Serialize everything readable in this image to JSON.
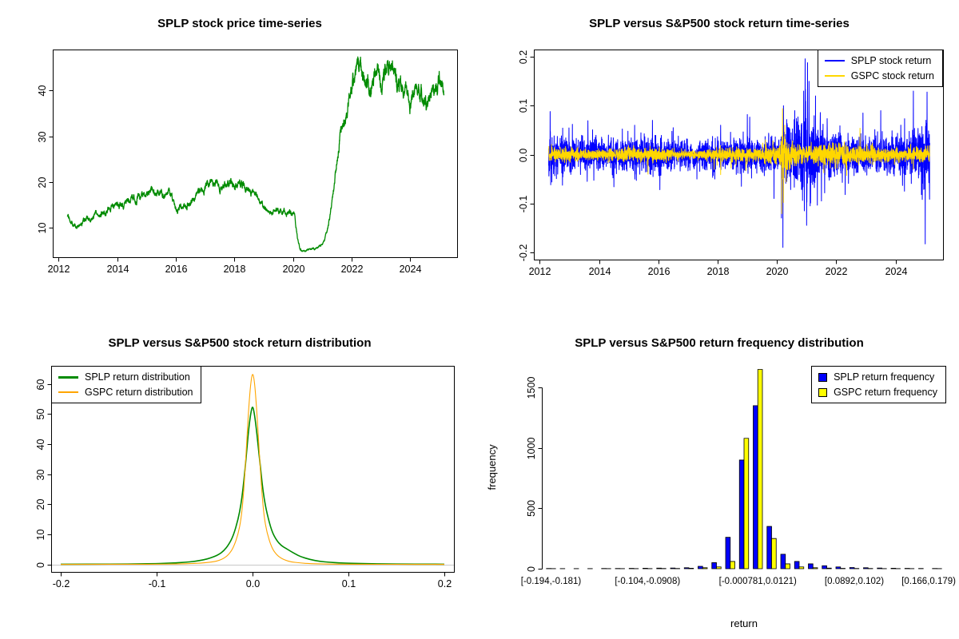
{
  "chart_data": [
    {
      "id": "price-series",
      "type": "line",
      "title": "SPLP stock price time-series",
      "series_name": "SPLP stock price",
      "color": "#008B00",
      "xlim": [
        2011.8,
        2025.6
      ],
      "ylim": [
        3.5,
        49
      ],
      "x_range": [
        2012.3,
        2025.15
      ],
      "x_ticks": [
        2012,
        2014,
        2016,
        2018,
        2020,
        2022,
        2024
      ],
      "y_ticks": [
        10,
        20,
        30,
        40
      ],
      "anchors": [
        [
          2012.3,
          12.6
        ],
        [
          2012.45,
          11.0
        ],
        [
          2012.6,
          10.3
        ],
        [
          2012.8,
          11.2
        ],
        [
          2013.0,
          11.8
        ],
        [
          2013.2,
          12.5
        ],
        [
          2013.5,
          13.6
        ],
        [
          2013.8,
          14.5
        ],
        [
          2014.0,
          15.2
        ],
        [
          2014.2,
          15.0
        ],
        [
          2014.5,
          15.8
        ],
        [
          2014.8,
          16.5
        ],
        [
          2015.0,
          17.3
        ],
        [
          2015.2,
          18.3
        ],
        [
          2015.4,
          18.0
        ],
        [
          2015.6,
          17.2
        ],
        [
          2015.8,
          17.8
        ],
        [
          2015.95,
          16.0
        ],
        [
          2016.05,
          13.8
        ],
        [
          2016.2,
          14.6
        ],
        [
          2016.4,
          15.4
        ],
        [
          2016.6,
          16.3
        ],
        [
          2016.8,
          17.8
        ],
        [
          2017.0,
          18.8
        ],
        [
          2017.2,
          19.6
        ],
        [
          2017.4,
          19.2
        ],
        [
          2017.6,
          18.8
        ],
        [
          2017.8,
          19.3
        ],
        [
          2018.0,
          19.8
        ],
        [
          2018.15,
          20.4
        ],
        [
          2018.3,
          19.2
        ],
        [
          2018.5,
          17.8
        ],
        [
          2018.7,
          16.8
        ],
        [
          2018.9,
          15.6
        ],
        [
          2019.1,
          14.2
        ],
        [
          2019.3,
          13.8
        ],
        [
          2019.5,
          14.0
        ],
        [
          2019.7,
          13.6
        ],
        [
          2019.9,
          13.4
        ],
        [
          2020.05,
          13.0
        ],
        [
          2020.15,
          8.0
        ],
        [
          2020.25,
          5.2
        ],
        [
          2020.4,
          4.9
        ],
        [
          2020.6,
          5.3
        ],
        [
          2020.8,
          5.6
        ],
        [
          2021.0,
          6.2
        ],
        [
          2021.1,
          7.5
        ],
        [
          2021.2,
          10.5
        ],
        [
          2021.3,
          14.0
        ],
        [
          2021.4,
          19.0
        ],
        [
          2021.5,
          25.0
        ],
        [
          2021.6,
          30.0
        ],
        [
          2021.7,
          34.5
        ],
        [
          2021.8,
          33.0
        ],
        [
          2021.9,
          36.0
        ],
        [
          2022.0,
          41.0
        ],
        [
          2022.1,
          43.5
        ],
        [
          2022.25,
          44.5
        ],
        [
          2022.4,
          42.5
        ],
        [
          2022.55,
          43.5
        ],
        [
          2022.7,
          42.0
        ],
        [
          2022.85,
          43.0
        ],
        [
          2023.0,
          42.5
        ],
        [
          2023.15,
          44.0
        ],
        [
          2023.3,
          46.5
        ],
        [
          2023.4,
          44.5
        ],
        [
          2023.55,
          42.0
        ],
        [
          2023.7,
          40.5
        ],
        [
          2023.85,
          39.0
        ],
        [
          2024.0,
          38.0
        ],
        [
          2024.15,
          40.0
        ],
        [
          2024.3,
          39.0
        ],
        [
          2024.45,
          37.5
        ],
        [
          2024.6,
          37.0
        ],
        [
          2024.75,
          39.5
        ],
        [
          2024.9,
          41.5
        ],
        [
          2025.0,
          43.5
        ],
        [
          2025.1,
          40.5
        ]
      ]
    },
    {
      "id": "return-series",
      "type": "line",
      "title": "SPLP versus S&P500 stock return time-series",
      "legend": [
        "SPLP stock return",
        "GSPC stock return"
      ],
      "colors": [
        "#0000FF",
        "#FFD700"
      ],
      "xlim": [
        2011.8,
        2025.6
      ],
      "ylim": [
        -0.215,
        0.215
      ],
      "x_range": [
        2012.3,
        2025.15
      ],
      "x_ticks": [
        2012,
        2014,
        2016,
        2018,
        2020,
        2022,
        2024
      ],
      "y_ticks": [
        -0.2,
        -0.1,
        0,
        0.1,
        0.2
      ],
      "y_tick_labels": [
        "-0.2",
        "-0.1",
        "0.0",
        "0.1",
        "0.2"
      ],
      "vol_splp": [
        [
          2012.3,
          0.02
        ],
        [
          2013,
          0.016
        ],
        [
          2014,
          0.015
        ],
        [
          2015,
          0.017
        ],
        [
          2016,
          0.018
        ],
        [
          2017,
          0.013
        ],
        [
          2018,
          0.016
        ],
        [
          2019,
          0.016
        ],
        [
          2020.1,
          0.018
        ],
        [
          2020.2,
          0.035
        ],
        [
          2020.5,
          0.025
        ],
        [
          2020.9,
          0.04
        ],
        [
          2021.1,
          0.045
        ],
        [
          2021.4,
          0.03
        ],
        [
          2022,
          0.022
        ],
        [
          2023,
          0.018
        ],
        [
          2024,
          0.018
        ],
        [
          2024.8,
          0.025
        ],
        [
          2025.15,
          0.035
        ]
      ],
      "vol_gspc": [
        [
          2012.3,
          0.007
        ],
        [
          2014,
          0.005
        ],
        [
          2015,
          0.007
        ],
        [
          2016,
          0.007
        ],
        [
          2017,
          0.003
        ],
        [
          2018,
          0.007
        ],
        [
          2019,
          0.006
        ],
        [
          2020.1,
          0.01
        ],
        [
          2020.25,
          0.025
        ],
        [
          2020.5,
          0.012
        ],
        [
          2021,
          0.007
        ],
        [
          2022,
          0.011
        ],
        [
          2023,
          0.008
        ],
        [
          2024,
          0.006
        ],
        [
          2025.15,
          0.008
        ]
      ],
      "outliers_splp": [
        [
          2012.35,
          0.088
        ],
        [
          2012.37,
          -0.062
        ],
        [
          2013.1,
          0.062
        ],
        [
          2013.6,
          -0.055
        ],
        [
          2014.5,
          -0.066
        ],
        [
          2015.2,
          0.06
        ],
        [
          2015.8,
          0.07
        ],
        [
          2016.05,
          -0.072
        ],
        [
          2016.5,
          0.055
        ],
        [
          2017.3,
          -0.05
        ],
        [
          2018.1,
          0.06
        ],
        [
          2018.8,
          -0.065
        ],
        [
          2019.0,
          0.082
        ],
        [
          2019.9,
          -0.09
        ],
        [
          2020.15,
          -0.13
        ],
        [
          2020.2,
          -0.19
        ],
        [
          2020.22,
          0.1
        ],
        [
          2020.6,
          0.09
        ],
        [
          2020.9,
          0.13
        ],
        [
          2020.95,
          0.196
        ],
        [
          2021.0,
          -0.145
        ],
        [
          2021.03,
          0.188
        ],
        [
          2021.08,
          0.15
        ],
        [
          2021.12,
          -0.105
        ],
        [
          2021.3,
          0.12
        ],
        [
          2021.5,
          -0.095
        ],
        [
          2022.3,
          -0.082
        ],
        [
          2022.9,
          0.085
        ],
        [
          2023.5,
          0.09
        ],
        [
          2024.3,
          -0.075
        ],
        [
          2024.6,
          0.13
        ],
        [
          2024.9,
          -0.092
        ],
        [
          2025.0,
          -0.183
        ],
        [
          2025.06,
          0.128
        ]
      ],
      "outliers_gspc": [
        [
          2015.65,
          -0.04
        ],
        [
          2018.1,
          -0.041
        ],
        [
          2018.95,
          -0.033
        ],
        [
          2020.16,
          -0.121
        ],
        [
          2020.19,
          0.094
        ],
        [
          2020.22,
          -0.098
        ],
        [
          2020.26,
          0.06
        ],
        [
          2020.3,
          -0.044
        ],
        [
          2022.35,
          -0.043
        ],
        [
          2022.8,
          0.054
        ],
        [
          2024.6,
          -0.03
        ]
      ]
    },
    {
      "id": "return-density",
      "type": "line",
      "title": "SPLP versus S&P500 stock return distribution",
      "legend": [
        "SPLP return distribution",
        "GSPC return distribution"
      ],
      "xlim": [
        -0.21,
        0.21
      ],
      "ylim": [
        -2.5,
        66
      ],
      "x_ticks": [
        -0.2,
        -0.1,
        0,
        0.1,
        0.2
      ],
      "x_tick_labels": [
        "-0.2",
        "-0.1",
        "0.0",
        "0.1",
        "0.2"
      ],
      "y_ticks": [
        0,
        10,
        20,
        30,
        40,
        50,
        60
      ],
      "zero_line_color": "#C8C8C8",
      "series": [
        {
          "name": "SPLP return distribution",
          "color": "#008B00",
          "peak": 53,
          "points": [
            [
              -0.2,
              0.05
            ],
            [
              -0.18,
              0.06
            ],
            [
              -0.16,
              0.08
            ],
            [
              -0.14,
              0.1
            ],
            [
              -0.12,
              0.15
            ],
            [
              -0.1,
              0.25
            ],
            [
              -0.09,
              0.35
            ],
            [
              -0.08,
              0.5
            ],
            [
              -0.07,
              0.7
            ],
            [
              -0.06,
              1.0
            ],
            [
              -0.05,
              1.6
            ],
            [
              -0.045,
              2.0
            ],
            [
              -0.04,
              2.6
            ],
            [
              -0.035,
              3.3
            ],
            [
              -0.03,
              4.5
            ],
            [
              -0.025,
              6.5
            ],
            [
              -0.02,
              9.5
            ],
            [
              -0.015,
              15
            ],
            [
              -0.012,
              20
            ],
            [
              -0.01,
              25
            ],
            [
              -0.008,
              31
            ],
            [
              -0.006,
              38
            ],
            [
              -0.004,
              45
            ],
            [
              -0.002,
              50
            ],
            [
              0,
              53
            ],
            [
              0.002,
              50
            ],
            [
              0.004,
              45
            ],
            [
              0.006,
              39
            ],
            [
              0.008,
              33
            ],
            [
              0.01,
              27
            ],
            [
              0.012,
              22
            ],
            [
              0.015,
              17
            ],
            [
              0.02,
              11
            ],
            [
              0.025,
              8
            ],
            [
              0.03,
              6.2
            ],
            [
              0.035,
              5.3
            ],
            [
              0.04,
              4.3
            ],
            [
              0.045,
              3.4
            ],
            [
              0.05,
              2.6
            ],
            [
              0.06,
              1.6
            ],
            [
              0.07,
              1.0
            ],
            [
              0.08,
              0.7
            ],
            [
              0.09,
              0.5
            ],
            [
              0.1,
              0.38
            ],
            [
              0.12,
              0.22
            ],
            [
              0.14,
              0.13
            ],
            [
              0.16,
              0.09
            ],
            [
              0.18,
              0.07
            ],
            [
              0.2,
              0.05
            ]
          ]
        },
        {
          "name": "GSPC return distribution",
          "color": "#FFA500",
          "peak": 64,
          "points": [
            [
              -0.2,
              0.01
            ],
            [
              -0.15,
              0.02
            ],
            [
              -0.12,
              0.04
            ],
            [
              -0.1,
              0.06
            ],
            [
              -0.08,
              0.12
            ],
            [
              -0.06,
              0.3
            ],
            [
              -0.05,
              0.5
            ],
            [
              -0.04,
              0.9
            ],
            [
              -0.035,
              1.3
            ],
            [
              -0.03,
              2.0
            ],
            [
              -0.025,
              3.2
            ],
            [
              -0.02,
              5.5
            ],
            [
              -0.015,
              10
            ],
            [
              -0.012,
              15
            ],
            [
              -0.01,
              21
            ],
            [
              -0.008,
              30
            ],
            [
              -0.006,
              41
            ],
            [
              -0.004,
              52
            ],
            [
              -0.002,
              60
            ],
            [
              0,
              64
            ],
            [
              0.002,
              61
            ],
            [
              0.004,
              53
            ],
            [
              0.006,
              43
            ],
            [
              0.008,
              32
            ],
            [
              0.01,
              23
            ],
            [
              0.012,
              16
            ],
            [
              0.015,
              10.5
            ],
            [
              0.02,
              5.5
            ],
            [
              0.025,
              3.2
            ],
            [
              0.03,
              2.0
            ],
            [
              0.035,
              1.3
            ],
            [
              0.04,
              0.85
            ],
            [
              0.05,
              0.45
            ],
            [
              0.06,
              0.25
            ],
            [
              0.08,
              0.1
            ],
            [
              0.1,
              0.05
            ],
            [
              0.12,
              0.03
            ],
            [
              0.15,
              0.02
            ],
            [
              0.2,
              0.01
            ]
          ]
        }
      ]
    },
    {
      "id": "return-frequency",
      "type": "bar",
      "title": "SPLP versus S&P500 return frequency distribution",
      "legend": [
        "SPLP return frequency",
        "GSPC return frequency"
      ],
      "xlabel": "return",
      "ylabel": "frequency",
      "ylim": [
        0,
        1680
      ],
      "y_ticks": [
        0,
        500,
        1000,
        1500
      ],
      "bin_count": 29,
      "x_tick_bins": [
        {
          "bin": 0,
          "label": "[-0.194,-0.181)"
        },
        {
          "bin": 7,
          "label": "[-0.104,-0.0908)"
        },
        {
          "bin": 15,
          "label": "[-0.000781,0.0121)"
        },
        {
          "bin": 22,
          "label": "[0.0892,0.102)"
        },
        {
          "bin": 28,
          "label": "[0.166,0.179)"
        }
      ],
      "series": [
        {
          "name": "SPLP return frequency",
          "color": "#0000FF",
          "values": [
            2,
            1,
            1,
            1,
            2,
            2,
            3,
            4,
            5,
            6,
            8,
            20,
            50,
            260,
            900,
            1350,
            350,
            120,
            60,
            40,
            25,
            15,
            10,
            8,
            6,
            4,
            3,
            2,
            2
          ]
        },
        {
          "name": "GSPC return frequency",
          "color": "#FFFF00",
          "values": [
            1,
            0,
            0,
            0,
            1,
            1,
            1,
            1,
            2,
            2,
            4,
            8,
            15,
            60,
            1080,
            1650,
            250,
            40,
            15,
            8,
            5,
            3,
            2,
            2,
            1,
            1,
            1,
            0,
            1
          ]
        }
      ]
    }
  ]
}
